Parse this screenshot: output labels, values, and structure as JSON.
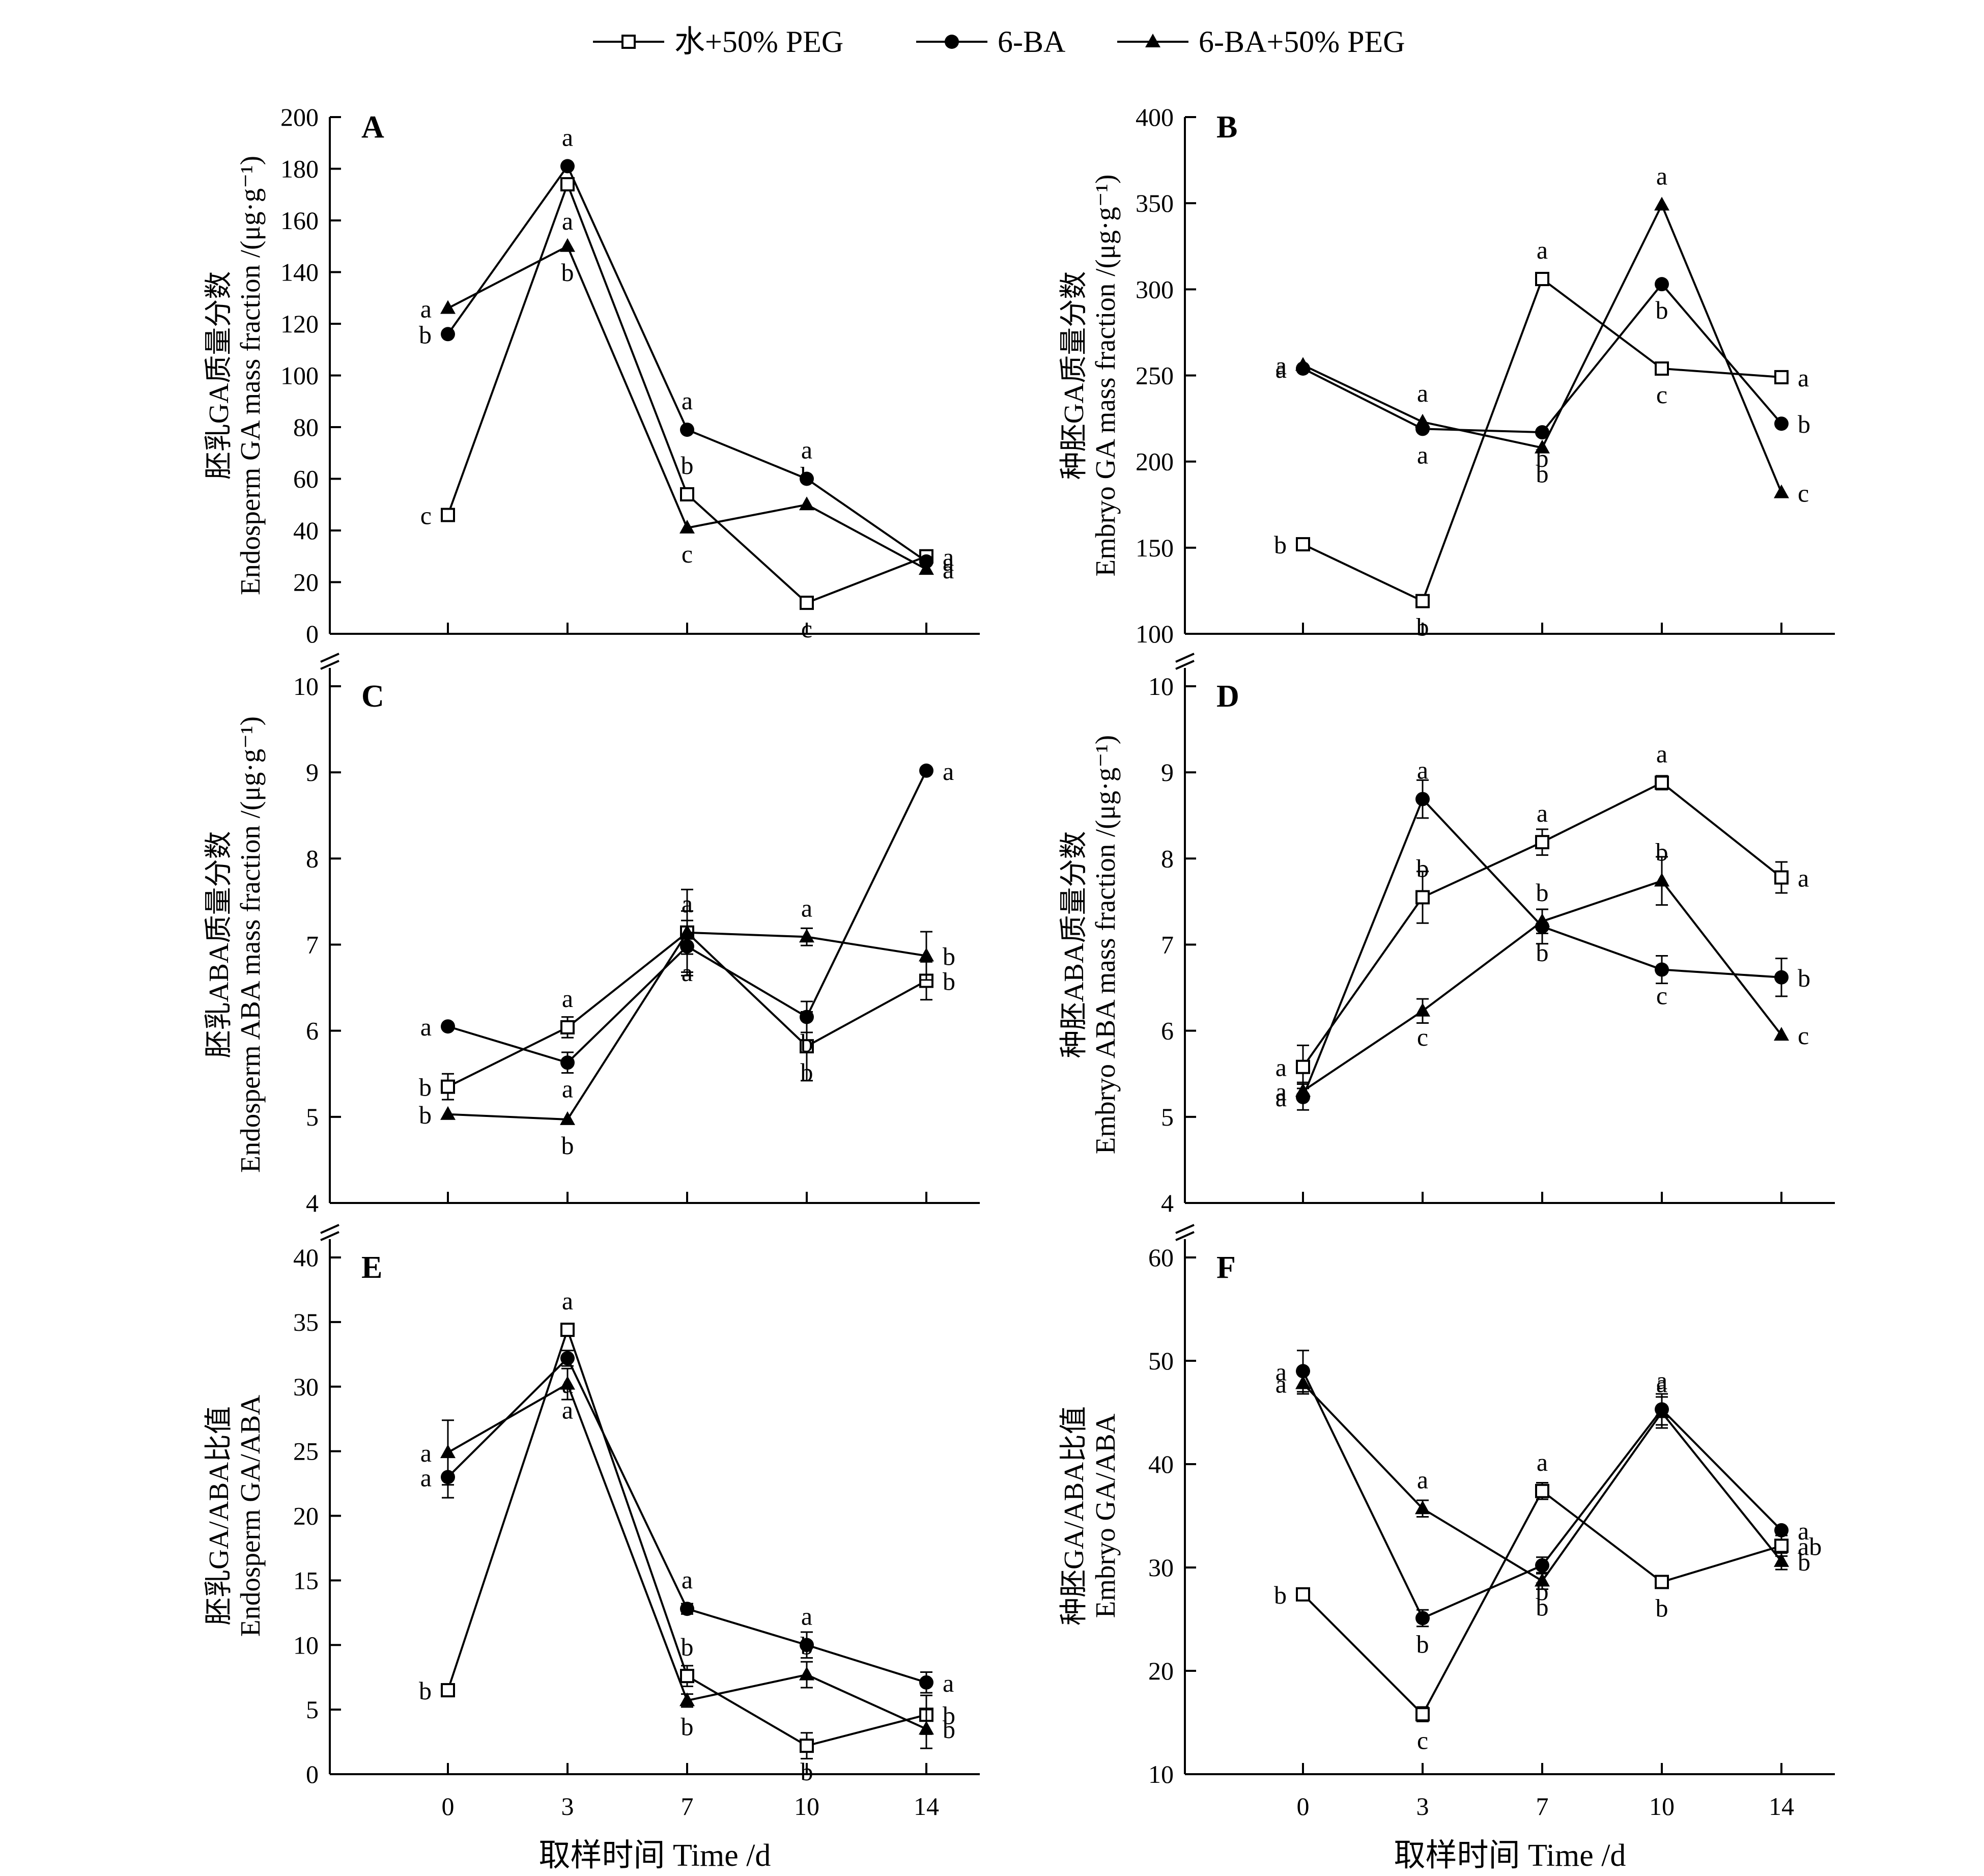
{
  "legend": [
    {
      "name": "水+50% PEG",
      "marker": "square-open"
    },
    {
      "name": "6-BA",
      "marker": "circle-filled"
    },
    {
      "name": "6-BA+50% PEG",
      "marker": "triangle-filled"
    }
  ],
  "xlabel": "取样时间 Time /d",
  "chart_data": [
    {
      "panel": "A",
      "type": "line",
      "x": [
        0,
        3,
        7,
        10,
        14
      ],
      "ylabel_cn": "胚乳GA质量分数",
      "ylabel_en": "Endosperm GA mass fraction /(μg·g⁻¹)",
      "ylim": [
        0,
        200
      ],
      "yticks": [
        0,
        20,
        40,
        60,
        80,
        100,
        120,
        140,
        160,
        180,
        200
      ],
      "axis_break_at_top": false,
      "series": [
        {
          "name": "水+50% PEG",
          "values": [
            46,
            174,
            54,
            12,
            30
          ],
          "err": [
            0,
            0,
            0,
            0,
            0
          ],
          "letters": [
            "c",
            "",
            "b",
            "c",
            "a"
          ]
        },
        {
          "name": "6-BA",
          "values": [
            116,
            181,
            79,
            60,
            28
          ],
          "err": [
            0,
            0,
            0,
            0,
            0
          ],
          "letters": [
            "b",
            "a",
            "a",
            "a",
            "a"
          ]
        },
        {
          "name": "6-BA+50% PEG",
          "values": [
            126,
            150,
            41,
            50,
            25
          ],
          "err": [
            0,
            0,
            0,
            0,
            0
          ],
          "letters": [
            "a",
            "b",
            "c",
            "b",
            "a"
          ]
        }
      ],
      "extra_labels": [
        {
          "x": 3,
          "y": 160,
          "text": "a"
        }
      ]
    },
    {
      "panel": "B",
      "type": "line",
      "x": [
        0,
        3,
        7,
        10,
        14
      ],
      "ylabel_cn": "种胚GA质量分数",
      "ylabel_en": "Embryo GA mass fraction /(μg·g⁻¹)",
      "ylim": [
        100,
        400
      ],
      "yticks": [
        100,
        150,
        200,
        250,
        300,
        350,
        400
      ],
      "axis_break_at_top": false,
      "series": [
        {
          "name": "水+50% PEG",
          "values": [
            152,
            119,
            306,
            254,
            249
          ],
          "err": [
            0,
            0,
            0,
            0,
            0
          ],
          "letters": [
            "b",
            "b",
            "a",
            "c",
            "a"
          ]
        },
        {
          "name": "6-BA",
          "values": [
            254,
            219,
            217,
            303,
            222
          ],
          "err": [
            0,
            0,
            0,
            0,
            0
          ],
          "letters": [
            "a",
            "a",
            "b",
            "b",
            "b"
          ]
        },
        {
          "name": "6-BA+50% PEG",
          "values": [
            256,
            223,
            208,
            349,
            182
          ],
          "err": [
            0,
            0,
            0,
            0,
            0
          ],
          "letters": [
            "a",
            "a",
            "b",
            "a",
            "c"
          ]
        }
      ],
      "extra_labels": []
    },
    {
      "panel": "C",
      "type": "line",
      "x": [
        0,
        3,
        7,
        10,
        14
      ],
      "ylabel_cn": "胚乳ABA质量分数",
      "ylabel_en": "Endosperm ABA mass fraction /(μg·g⁻¹)",
      "ylim": [
        4,
        10
      ],
      "yticks": [
        4,
        5,
        6,
        7,
        8,
        9,
        10
      ],
      "axis_break_at_top": true,
      "series": [
        {
          "name": "水+50% PEG",
          "values": [
            5.35,
            6.04,
            7.14,
            5.82,
            6.58
          ],
          "err": [
            0.15,
            0.12,
            0.5,
            0.4,
            0.22
          ],
          "letters": [
            "b",
            "a",
            "a",
            "b",
            "b"
          ]
        },
        {
          "name": "6-BA",
          "values": [
            6.05,
            5.63,
            6.98,
            6.16,
            9.02
          ],
          "err": [
            0,
            0.12,
            0.3,
            0.18,
            0
          ],
          "letters": [
            "a",
            "a",
            "a",
            "b",
            "a"
          ]
        },
        {
          "name": "6-BA+50% PEG",
          "values": [
            5.03,
            4.97,
            7.14,
            7.09,
            6.87
          ],
          "err": [
            0,
            0,
            0.25,
            0.1,
            0.28
          ],
          "letters": [
            "b",
            "b",
            "a",
            "a",
            "b"
          ]
        }
      ],
      "extra_labels": []
    },
    {
      "panel": "D",
      "type": "line",
      "x": [
        0,
        3,
        7,
        10,
        14
      ],
      "ylabel_cn": "种胚ABA质量分数",
      "ylabel_en": "Embryo ABA mass fraction /(μg·g⁻¹)",
      "ylim": [
        4,
        10
      ],
      "yticks": [
        4,
        5,
        6,
        7,
        8,
        9,
        10
      ],
      "axis_break_at_top": true,
      "series": [
        {
          "name": "水+50% PEG",
          "values": [
            5.58,
            7.55,
            8.19,
            8.88,
            7.78
          ],
          "err": [
            0.25,
            0.3,
            0.15,
            0.08,
            0.18
          ],
          "letters": [
            "a",
            "b",
            "a",
            "a",
            "a"
          ]
        },
        {
          "name": "6-BA",
          "values": [
            5.23,
            8.69,
            7.21,
            6.71,
            6.62
          ],
          "err": [
            0.15,
            0.22,
            0.2,
            0.16,
            0.22
          ],
          "letters": [
            "a",
            "a",
            "b",
            "c",
            "b"
          ]
        },
        {
          "name": "6-BA+50% PEG",
          "values": [
            5.3,
            6.23,
            7.27,
            7.74,
            5.95
          ],
          "err": [
            0.1,
            0.14,
            0.14,
            0.28,
            0
          ],
          "letters": [
            "a",
            "c",
            "b",
            "b",
            "c"
          ]
        }
      ],
      "extra_labels": []
    },
    {
      "panel": "E",
      "type": "line",
      "x": [
        0,
        3,
        7,
        10,
        14
      ],
      "ylabel_cn": "胚乳GA/ABA比值",
      "ylabel_en": "Endosperm GA/ABA",
      "ylim": [
        0,
        40
      ],
      "yticks": [
        0,
        5,
        10,
        15,
        20,
        25,
        30,
        35,
        40
      ],
      "axis_break_at_top": true,
      "series": [
        {
          "name": "水+50% PEG",
          "values": [
            6.5,
            34.4,
            7.6,
            2.2,
            4.6
          ],
          "err": [
            0,
            0.4,
            0.8,
            1.0,
            1.5
          ],
          "letters": [
            "b",
            "a",
            "b",
            "b",
            "b"
          ]
        },
        {
          "name": "6-BA",
          "values": [
            23.0,
            32.2,
            12.8,
            10.0,
            7.1
          ],
          "err": [
            1.6,
            0.6,
            0.4,
            1.0,
            0.8
          ],
          "letters": [
            "a",
            "a",
            "a",
            "a",
            "a"
          ]
        },
        {
          "name": "6-BA+50% PEG",
          "values": [
            24.9,
            30.2,
            5.7,
            7.7,
            3.5
          ],
          "err": [
            2.5,
            1.2,
            0.5,
            1.0,
            1.5
          ],
          "letters": [
            "a",
            "a",
            "b",
            "b",
            "b"
          ]
        }
      ],
      "extra_labels": []
    },
    {
      "panel": "F",
      "type": "line",
      "x": [
        0,
        3,
        7,
        10,
        14
      ],
      "ylabel_cn": "种胚GA/ABA比值",
      "ylabel_en": "Embryo GA/ABA",
      "ylim": [
        10,
        60
      ],
      "yticks": [
        10,
        20,
        30,
        40,
        50,
        60
      ],
      "axis_break_at_top": true,
      "series": [
        {
          "name": "水+50% PEG",
          "values": [
            27.4,
            15.8,
            37.4,
            28.6,
            32.1
          ],
          "err": [
            0,
            0.7,
            0.8,
            0,
            1.0
          ],
          "letters": [
            "b",
            "c",
            "a",
            "b",
            "ab"
          ]
        },
        {
          "name": "6-BA",
          "values": [
            49.0,
            25.1,
            30.2,
            45.3,
            33.6
          ],
          "err": [
            2.0,
            0.8,
            0.8,
            1.5,
            0
          ],
          "letters": [
            "a",
            "b",
            "b",
            "a",
            "a"
          ]
        },
        {
          "name": "6-BA+50% PEG",
          "values": [
            47.8,
            35.7,
            28.7,
            45.0,
            30.6
          ],
          "err": [
            1.0,
            0.8,
            0.8,
            1.5,
            0.8
          ],
          "letters": [
            "a",
            "a",
            "b",
            "a",
            "b"
          ]
        }
      ],
      "extra_labels": []
    }
  ]
}
